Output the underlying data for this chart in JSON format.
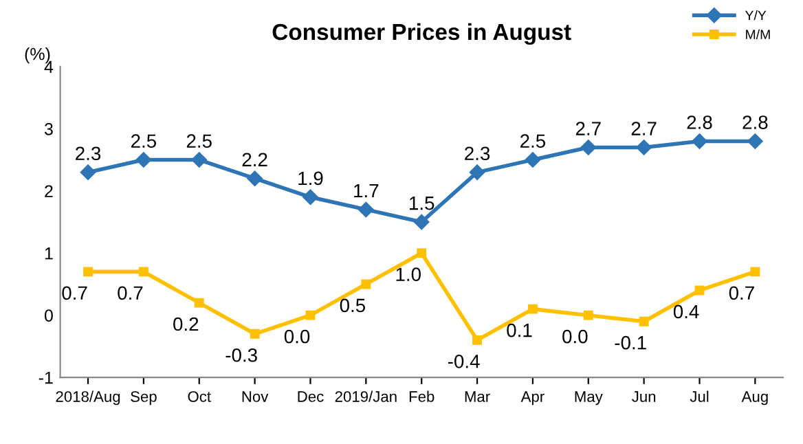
{
  "chart_data": {
    "type": "line",
    "title": "Consumer Prices in August",
    "ylabel": "(%)",
    "categories": [
      "2018/Aug",
      "Sep",
      "Oct",
      "Nov",
      "Dec",
      "2019/Jan",
      "Feb",
      "Mar",
      "Apr",
      "May",
      "Jun",
      "Jul",
      "Aug"
    ],
    "series": [
      {
        "name": "Y/Y",
        "color": "#2e75b6",
        "marker": "diamond",
        "values": [
          2.3,
          2.5,
          2.5,
          2.2,
          1.9,
          1.7,
          1.5,
          2.3,
          2.5,
          2.7,
          2.7,
          2.8,
          2.8
        ],
        "value_labels": [
          "2.3",
          "2.5",
          "2.5",
          "2.2",
          "1.9",
          "1.7",
          "1.5",
          "2.3",
          "2.5",
          "2.7",
          "2.7",
          "2.8",
          "2.8"
        ]
      },
      {
        "name": "M/M",
        "color": "#ffc000",
        "marker": "square",
        "values": [
          0.7,
          0.7,
          0.2,
          -0.3,
          0.0,
          0.5,
          1.0,
          -0.4,
          0.1,
          0.0,
          -0.1,
          0.4,
          0.7
        ],
        "value_labels": [
          "0.7",
          "0.7",
          "0.2",
          "-0.3",
          "0.0",
          "0.5",
          "1.0",
          "-0.4",
          "0.1",
          "0.0",
          "-0.1",
          "0.4",
          "0.7"
        ]
      }
    ],
    "ylim": [
      -1,
      4
    ],
    "yticks": [
      -1,
      0,
      1,
      2,
      3,
      4
    ],
    "grid": false,
    "legend": "top right",
    "line_style": "solid"
  }
}
